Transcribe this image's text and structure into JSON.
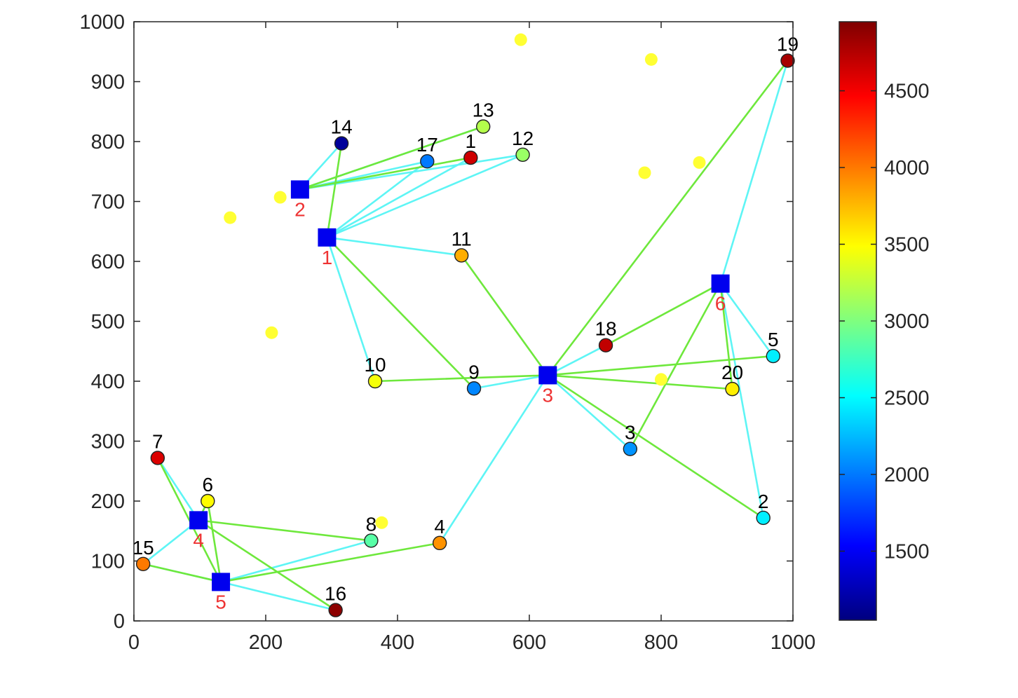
{
  "chart_data": {
    "type": "scatter",
    "title": "",
    "xlabel": "",
    "ylabel": "",
    "xlim": [
      0,
      1000
    ],
    "ylim": [
      0,
      1000
    ],
    "xticks": [
      0,
      200,
      400,
      600,
      800,
      1000
    ],
    "yticks": [
      0,
      100,
      200,
      300,
      400,
      500,
      600,
      700,
      800,
      900,
      1000
    ],
    "colorbar": {
      "colormap": "jet",
      "range": [
        1050,
        4950
      ],
      "ticks": [
        1500,
        2000,
        2500,
        3000,
        3500,
        4000,
        4500
      ]
    },
    "depots": [
      {
        "label": "1",
        "x": 293,
        "y": 640
      },
      {
        "label": "2",
        "x": 252,
        "y": 720
      },
      {
        "label": "3",
        "x": 628,
        "y": 410
      },
      {
        "label": "4",
        "x": 98,
        "y": 168
      },
      {
        "label": "5",
        "x": 132,
        "y": 65
      },
      {
        "label": "6",
        "x": 890,
        "y": 563
      }
    ],
    "customers": [
      {
        "label": "1",
        "x": 511,
        "y": 773,
        "value": 4650
      },
      {
        "label": "2",
        "x": 955,
        "y": 172,
        "value": 2450
      },
      {
        "label": "3",
        "x": 753,
        "y": 287,
        "value": 2100
      },
      {
        "label": "4",
        "x": 464,
        "y": 130,
        "value": 3900
      },
      {
        "label": "5",
        "x": 970,
        "y": 442,
        "value": 2450
      },
      {
        "label": "6",
        "x": 112,
        "y": 200,
        "value": 3500
      },
      {
        "label": "7",
        "x": 36,
        "y": 272,
        "value": 4600
      },
      {
        "label": "8",
        "x": 360,
        "y": 134,
        "value": 2850
      },
      {
        "label": "9",
        "x": 516,
        "y": 388,
        "value": 2050
      },
      {
        "label": "10",
        "x": 366,
        "y": 400,
        "value": 3450
      },
      {
        "label": "11",
        "x": 497,
        "y": 610,
        "value": 3800
      },
      {
        "label": "12",
        "x": 590,
        "y": 778,
        "value": 3100
      },
      {
        "label": "13",
        "x": 530,
        "y": 825,
        "value": 3200
      },
      {
        "label": "14",
        "x": 315,
        "y": 797,
        "value": 1150
      },
      {
        "label": "15",
        "x": 14,
        "y": 95,
        "value": 4000
      },
      {
        "label": "16",
        "x": 306,
        "y": 18,
        "value": 4900
      },
      {
        "label": "17",
        "x": 445,
        "y": 767,
        "value": 2000
      },
      {
        "label": "18",
        "x": 716,
        "y": 460,
        "value": 4700
      },
      {
        "label": "19",
        "x": 992,
        "y": 935,
        "value": 4800
      },
      {
        "label": "20",
        "x": 908,
        "y": 387,
        "value": 3550
      }
    ],
    "candidate_points": [
      {
        "x": 587,
        "y": 970
      },
      {
        "x": 785,
        "y": 937
      },
      {
        "x": 775,
        "y": 748
      },
      {
        "x": 858,
        "y": 765
      },
      {
        "x": 222,
        "y": 707
      },
      {
        "x": 146,
        "y": 673
      },
      {
        "x": 209,
        "y": 481
      },
      {
        "x": 800,
        "y": 403
      },
      {
        "x": 376,
        "y": 164
      }
    ],
    "cyan_routes": [
      [
        "d2",
        "c14"
      ],
      [
        "d2",
        "c13"
      ],
      [
        "d2",
        "c17"
      ],
      [
        "d2",
        "c12"
      ],
      [
        "d1",
        "c17"
      ],
      [
        "d1",
        "c1"
      ],
      [
        "d1",
        "c12"
      ],
      [
        "d1",
        "c11"
      ],
      [
        "d1",
        "c10"
      ],
      [
        "d3",
        "c9"
      ],
      [
        "d3",
        "c18"
      ],
      [
        "d3",
        "c3"
      ],
      [
        "d3",
        "c4"
      ],
      [
        "d6",
        "c19"
      ],
      [
        "d6",
        "c5"
      ],
      [
        "d6",
        "c2"
      ],
      [
        "d4",
        "c7"
      ],
      [
        "d4",
        "c15"
      ],
      [
        "d5",
        "c15"
      ],
      [
        "d5",
        "c8"
      ],
      [
        "d5",
        "c16"
      ]
    ],
    "green_routes": [
      [
        "d2",
        "c1"
      ],
      [
        "d2",
        "c13"
      ],
      [
        "d1",
        "c14"
      ],
      [
        "d1",
        "c9"
      ],
      [
        "c11",
        "d3"
      ],
      [
        "d3",
        "c10"
      ],
      [
        "d3",
        "c19"
      ],
      [
        "d3",
        "c5"
      ],
      [
        "d3",
        "c20"
      ],
      [
        "d3",
        "c2"
      ],
      [
        "d6",
        "c18"
      ],
      [
        "d6",
        "c3"
      ],
      [
        "d6",
        "c20"
      ],
      [
        "d4",
        "c6"
      ],
      [
        "d4",
        "c8"
      ],
      [
        "d4",
        "c16"
      ],
      [
        "d5",
        "c7"
      ],
      [
        "d5",
        "c6"
      ],
      [
        "d5",
        "c15"
      ],
      [
        "d5",
        "c4"
      ]
    ]
  }
}
